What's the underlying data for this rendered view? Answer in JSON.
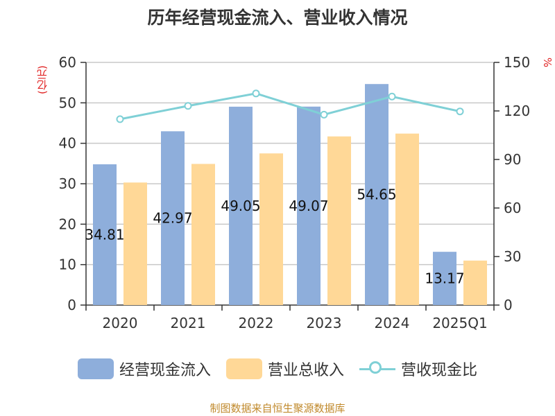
{
  "chart_data": {
    "type": "bar",
    "title": "历年经营现金流入、营业收入情况",
    "categories": [
      "2020",
      "2021",
      "2022",
      "2023",
      "2024",
      "2025Q1"
    ],
    "series": [
      {
        "name": "经营现金流入",
        "kind": "bar",
        "axis": "left",
        "color": "#8eaedb",
        "values": [
          34.81,
          42.97,
          49.05,
          49.07,
          54.65,
          13.17
        ],
        "labels": [
          "34.81",
          "42.97",
          "49.05",
          "49.07",
          "54.65",
          "13.17"
        ]
      },
      {
        "name": "营业总收入",
        "kind": "bar",
        "axis": "left",
        "color": "#ffd897",
        "values": [
          30.3,
          34.9,
          37.5,
          41.7,
          42.4,
          11.0
        ]
      },
      {
        "name": "营收现金比",
        "kind": "line",
        "axis": "right",
        "color": "#7fd0d6",
        "values": [
          114.9,
          123.1,
          130.8,
          117.7,
          128.9,
          119.7
        ]
      }
    ],
    "y_left": {
      "unit": "(亿元)",
      "ylim": [
        0,
        60
      ],
      "ticks": [
        0,
        10,
        20,
        30,
        40,
        50,
        60
      ]
    },
    "y_right": {
      "unit": "%",
      "ylim": [
        0,
        150
      ],
      "ticks": [
        0,
        30,
        60,
        90,
        120,
        150
      ]
    },
    "grid": true,
    "legend": "bottom"
  },
  "footer": "制图数据来自恒生聚源数据库"
}
